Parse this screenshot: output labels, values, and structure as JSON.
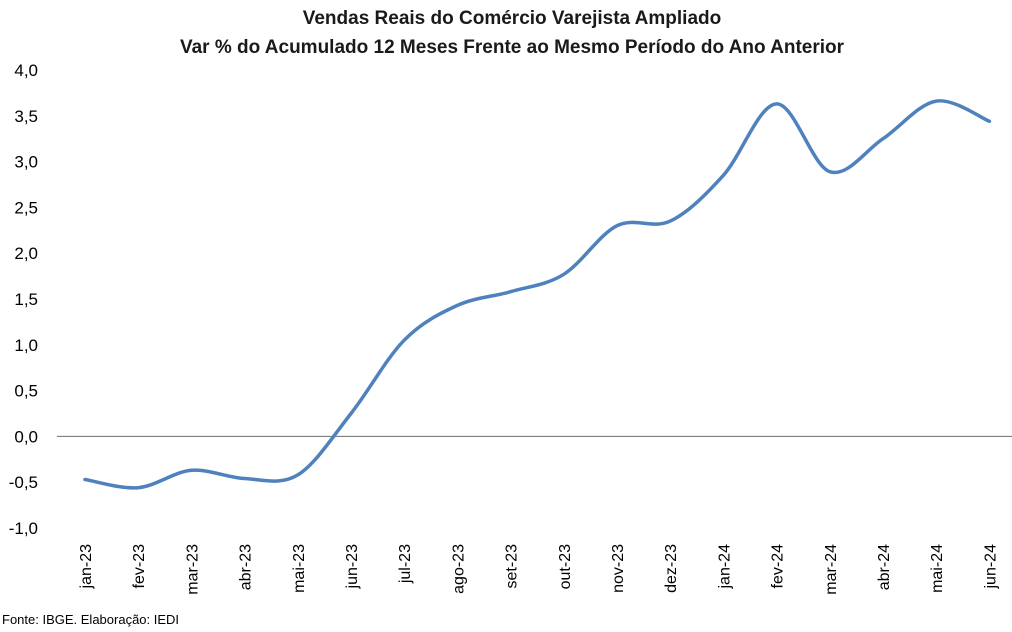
{
  "chart_data": {
    "type": "line",
    "title": "Vendas Reais do Comércio Varejista Ampliado",
    "subtitle": "Var % do Acumulado 12 Meses Frente ao Mesmo Período do Ano Anterior",
    "xlabel": "",
    "ylabel": "",
    "categories": [
      "jan-23",
      "fev-23",
      "mar-23",
      "abr-23",
      "mai-23",
      "jun-23",
      "jul-23",
      "ago-23",
      "set-23",
      "out-23",
      "nov-23",
      "dez-23",
      "jan-24",
      "fev-24",
      "mar-24",
      "abr-24",
      "mai-24",
      "jun-24"
    ],
    "series": [
      {
        "values": [
          -0.47,
          -0.56,
          -0.37,
          -0.46,
          -0.42,
          0.25,
          1.05,
          1.43,
          1.58,
          1.77,
          2.3,
          2.35,
          2.85,
          3.63,
          2.89,
          3.25,
          3.66,
          3.44
        ],
        "color": "#4f81bd"
      }
    ],
    "ylim": [
      -1.0,
      4.0
    ],
    "yticks": [
      "4,0",
      "3,5",
      "3,0",
      "2,5",
      "2,0",
      "1,5",
      "1,0",
      "0,5",
      "0,0",
      "-0,5",
      "-1,0"
    ],
    "ytick_values": [
      4.0,
      3.5,
      3.0,
      2.5,
      2.0,
      1.5,
      1.0,
      0.5,
      0.0,
      -0.5,
      -1.0
    ],
    "grid": false,
    "legend": "none"
  },
  "source_note": "Fonte: IBGE. Elaboração: IEDI"
}
